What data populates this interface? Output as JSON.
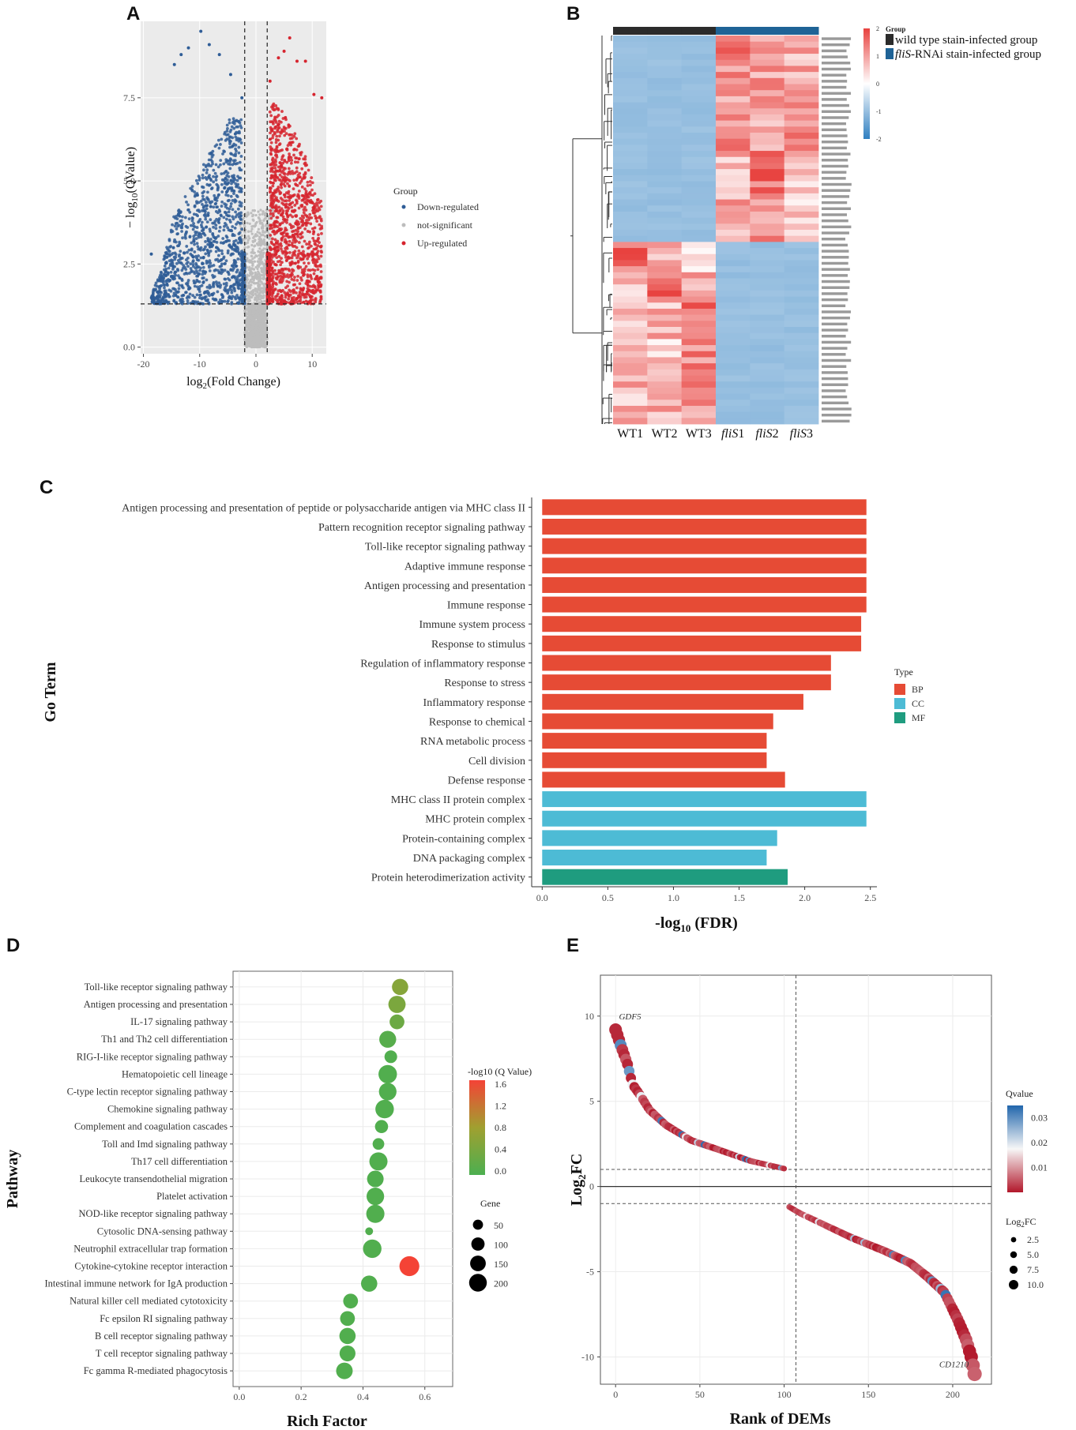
{
  "panels": {
    "a": "A",
    "b": "B",
    "c": "C",
    "d": "D",
    "e": "E"
  },
  "chart_data": [
    {
      "id": "A",
      "type": "scatter",
      "title": "",
      "xlabel": "log2(Fold Change)",
      "xlabel_main": "log",
      "xlabel_sub": "2",
      "xlabel_tail": "(Fold Change)",
      "ylabel": "−log10(QValue)",
      "ylabel_main": "− log",
      "ylabel_sub": "10",
      "ylabel_tail": "(QValue)",
      "xlim": [
        -20.5,
        12.5
      ],
      "ylim": [
        -0.2,
        9.8
      ],
      "xticks": [
        "-20",
        "-10",
        "0",
        "10"
      ],
      "xtick_values": [
        -20,
        -10,
        0,
        10
      ],
      "yticks": [
        "0.0",
        "2.5",
        "5.0",
        "7.5"
      ],
      "ytick_values": [
        0,
        2.5,
        5,
        7.5
      ],
      "thresholds": {
        "x": [
          -2,
          2
        ],
        "y": 1.3
      },
      "legend_title": "Group",
      "legend": [
        {
          "label": "Down-regulated",
          "color": "#2f5d97"
        },
        {
          "label": "not-significant",
          "color": "#bdbdbd"
        },
        {
          "label": "Up-regulated",
          "color": "#d6242e"
        }
      ],
      "envelope": {
        "down": [
          [
            -18.6,
            2.8
          ],
          [
            -14.5,
            8.5
          ],
          [
            -13.3,
            8.8
          ],
          [
            -12,
            9.0
          ],
          [
            -9.8,
            9.5
          ],
          [
            -8.3,
            9.1
          ],
          [
            -6.5,
            8.8
          ],
          [
            -4.5,
            8.2
          ],
          [
            -2.5,
            7.5
          ]
        ],
        "up": [
          [
            2.5,
            8.0
          ],
          [
            4.0,
            8.7
          ],
          [
            5.0,
            8.9
          ],
          [
            6.0,
            9.3
          ],
          [
            7.3,
            8.6
          ],
          [
            8.8,
            8.6
          ],
          [
            10.3,
            7.6
          ],
          [
            11.7,
            7.5
          ]
        ]
      }
    },
    {
      "id": "B",
      "type": "heatmap",
      "columns": [
        "WT1",
        "WT2",
        "WT3",
        "fliS1",
        "fliS2",
        "fliS3"
      ],
      "column_labels": [
        {
          "prefix": "WT1",
          "italic": "",
          "suffix": ""
        },
        {
          "prefix": "WT2",
          "italic": "",
          "suffix": ""
        },
        {
          "prefix": "WT3",
          "italic": "",
          "suffix": ""
        },
        {
          "prefix": "",
          "italic": "fliS",
          "suffix": "1"
        },
        {
          "prefix": "",
          "italic": "fliS",
          "suffix": "2"
        },
        {
          "prefix": "",
          "italic": "fliS",
          "suffix": "3"
        }
      ],
      "group_annotation": [
        "wild type",
        "wild type",
        "wild type",
        "fliS",
        "fliS",
        "fliS"
      ],
      "group_legend_title": "Group",
      "group_legend": [
        {
          "label": "wild type stain-infected group",
          "italic": "",
          "color": "#2b2b2b"
        },
        {
          "label": "-RNAi stain-infected group",
          "italic": "fliS",
          "color": "#1f6396"
        }
      ],
      "color_scale": {
        "min": -2,
        "max": 2,
        "low": "#2f7fc1",
        "mid": "#ffffff",
        "high": "#e8423f"
      },
      "scale_ticks": [
        "2",
        "1",
        "0",
        "-1",
        "-2"
      ],
      "scale_tick_values": [
        2,
        1,
        0,
        -1,
        -2
      ],
      "row_blocks": [
        {
          "rows": 10,
          "values": [
            -1,
            -1,
            -1,
            1.3,
            1.0,
            0.9
          ]
        },
        {
          "rows": 9,
          "values": [
            -1,
            -1,
            -1,
            1.1,
            0.9,
            1.2
          ]
        },
        {
          "rows": 7,
          "values": [
            -1,
            -1,
            -1,
            0.7,
            1.5,
            0.6
          ]
        },
        {
          "rows": 8,
          "values": [
            -1,
            -1,
            -1,
            0.9,
            1.1,
            0.6
          ]
        },
        {
          "rows": 5,
          "values": [
            1.5,
            0.7,
            0.6,
            -1,
            -1,
            -1
          ]
        },
        {
          "rows": 5,
          "values": [
            0.6,
            1.5,
            0.8,
            -1,
            -1,
            -1
          ]
        },
        {
          "rows": 6,
          "values": [
            0.6,
            0.8,
            1.5,
            -1,
            -1,
            -1
          ]
        },
        {
          "rows": 8,
          "values": [
            0.8,
            0.5,
            1.3,
            -1,
            -1,
            -1
          ]
        },
        {
          "rows": 6,
          "values": [
            0.7,
            0.9,
            1.1,
            -1,
            -1,
            -1
          ]
        }
      ],
      "row_ids": "gene identifiers (illegibly small)"
    },
    {
      "id": "C",
      "type": "bar",
      "orientation": "horizontal",
      "xlabel": "-log10 (FDR)",
      "xlabel_main": "-log",
      "xlabel_sub": "10",
      "xlabel_tail": " (FDR)",
      "ylabel": "Go Term",
      "xlim": [
        -0.08,
        2.55
      ],
      "xticks": [
        "0.0",
        "0.5",
        "1.0",
        "1.5",
        "2.0",
        "2.5"
      ],
      "xtick_values": [
        0,
        0.5,
        1.0,
        1.5,
        2.0,
        2.5
      ],
      "legend_title": "Type",
      "legend": [
        {
          "label": "BP",
          "color": "#e64b35"
        },
        {
          "label": "CC",
          "color": "#4dbbd5"
        },
        {
          "label": "MF",
          "color": "#1f9c7f"
        }
      ],
      "categories": [
        "Antigen processing and presentation of peptide or polysaccharide antigen via MHC class II",
        "Pattern recognition receptor signaling pathway",
        "Toll-like receptor signaling pathway",
        "Adaptive immune response",
        "Antigen processing and presentation",
        "Immune response",
        "Immune system process",
        "Response to stimulus",
        "Regulation of inflammatory response",
        "Response to stress",
        "Inflammatory response",
        "Response to chemical",
        "RNA metabolic process",
        "Cell division",
        "Defense response",
        "MHC class II protein complex",
        "MHC protein complex",
        "Protein-containing complex",
        "DNA packaging complex",
        "Protein heterodimerization activity"
      ],
      "values": [
        2.47,
        2.47,
        2.47,
        2.47,
        2.47,
        2.47,
        2.43,
        2.43,
        2.2,
        2.2,
        1.99,
        1.76,
        1.71,
        1.71,
        1.85,
        2.47,
        2.47,
        1.79,
        1.71,
        1.87
      ],
      "types": [
        "BP",
        "BP",
        "BP",
        "BP",
        "BP",
        "BP",
        "BP",
        "BP",
        "BP",
        "BP",
        "BP",
        "BP",
        "BP",
        "BP",
        "BP",
        "CC",
        "CC",
        "CC",
        "CC",
        "MF"
      ]
    },
    {
      "id": "D",
      "type": "scatter",
      "subtype": "bubble",
      "xlabel": "Rich Factor",
      "ylabel": "Pathway",
      "xlim": [
        -0.02,
        0.69
      ],
      "xticks": [
        "0.0",
        "0.2",
        "0.4",
        "0.6"
      ],
      "xtick_values": [
        0,
        0.2,
        0.4,
        0.6
      ],
      "color_legend_title": "-log10 (Q Value)",
      "color_scale": {
        "min": 0,
        "max": 1.6,
        "low": "#4caf50",
        "high": "#f44336"
      },
      "color_ticks": [
        "1.6",
        "1.2",
        "0.8",
        "0.4",
        "0.0"
      ],
      "color_tick_values": [
        1.6,
        1.2,
        0.8,
        0.4,
        0.0
      ],
      "size_legend_title": "Gene",
      "size_legend": [
        "50",
        "100",
        "150",
        "200"
      ],
      "size_legend_values": [
        50,
        100,
        150,
        200
      ],
      "categories": [
        "Toll-like receptor signaling pathway",
        "Antigen processing and presentation",
        "IL-17 signaling pathway",
        "Th1 and Th2 cell differentiation",
        "RIG-I-like receptor signaling pathway",
        "Hematopoietic cell lineage",
        "C-type lectin receptor signaling pathway",
        "Chemokine signaling pathway",
        "Complement and coagulation cascades",
        "Toll and Imd signaling pathway",
        "Th17 cell differentiation",
        "Leukocyte transendothelial migration",
        "Platelet activation",
        "NOD-like receptor signaling pathway",
        "Cytosolic DNA-sensing pathway",
        "Neutrophil extracellular trap formation",
        "Cytokine-cytokine receptor interaction",
        "Intestinal immune network for IgA production",
        "Natural killer cell mediated cytotoxicity",
        "Fc epsilon RI signaling pathway",
        "B cell receptor signaling pathway",
        "T cell receptor signaling pathway",
        "Fc gamma R-mediated phagocytosis"
      ],
      "rich_factor": [
        0.52,
        0.51,
        0.51,
        0.48,
        0.49,
        0.48,
        0.48,
        0.47,
        0.46,
        0.45,
        0.45,
        0.44,
        0.44,
        0.44,
        0.42,
        0.43,
        0.55,
        0.42,
        0.36,
        0.35,
        0.35,
        0.35,
        0.34
      ],
      "neg_log10_q": [
        0.55,
        0.45,
        0.3,
        0.1,
        0.05,
        0.05,
        0.05,
        0.05,
        0.05,
        0.05,
        0.05,
        0.05,
        0.05,
        0.05,
        0.05,
        0.05,
        1.6,
        0.05,
        0.05,
        0.05,
        0.05,
        0.05,
        0.05
      ],
      "gene_count": [
        95,
        110,
        75,
        105,
        50,
        130,
        115,
        130,
        55,
        40,
        125,
        100,
        115,
        125,
        12,
        130,
        155,
        95,
        75,
        75,
        95,
        90,
        100
      ]
    },
    {
      "id": "E",
      "type": "scatter",
      "xlabel": "Rank of DEMs",
      "ylabel": "Log2FC",
      "ylabel_main": "Log",
      "ylabel_sub": "2",
      "ylabel_tail": "FC",
      "xlim": [
        -9,
        223
      ],
      "ylim": [
        -11.6,
        12.4
      ],
      "xticks": [
        "0",
        "50",
        "100",
        "150",
        "200"
      ],
      "xtick_values": [
        0,
        50,
        100,
        150,
        200
      ],
      "yticks": [
        "10",
        "5",
        "0",
        "-5",
        "-10"
      ],
      "ytick_values": [
        10,
        5,
        0,
        -5,
        -10
      ],
      "thresholds": {
        "x": 107,
        "y": [
          1,
          -1
        ]
      },
      "annotations": [
        "GDF5",
        "CD1210"
      ],
      "qvalue_legend_title": "Qvalue",
      "qvalue_scale": {
        "min": 0.0,
        "max": 0.035,
        "low": "#b2182b",
        "mid": "#f7f7f7",
        "high": "#2166ac"
      },
      "qvalue_ticks": [
        "0.03",
        "0.02",
        "0.01"
      ],
      "qvalue_tick_values": [
        0.03,
        0.02,
        0.01
      ],
      "size_legend_title": "Log2FC",
      "size_legend_title_main": "Log",
      "size_legend_title_sub": "2",
      "size_legend_title_tail": "FC",
      "size_legend": [
        "2.5",
        "5.0",
        "7.5",
        "10.0"
      ],
      "size_legend_values": [
        2.5,
        5.0,
        7.5,
        10.0
      ],
      "up_curve": [
        [
          0,
          9.2
        ],
        [
          3,
          8.3
        ],
        [
          7,
          7.2
        ],
        [
          10,
          6.0
        ],
        [
          15,
          5.3
        ],
        [
          20,
          4.5
        ],
        [
          30,
          3.6
        ],
        [
          45,
          2.7
        ],
        [
          60,
          2.2
        ],
        [
          80,
          1.5
        ],
        [
          100,
          1.05
        ]
      ],
      "down_curve": [
        [
          103,
          -1.2
        ],
        [
          110,
          -1.6
        ],
        [
          125,
          -2.3
        ],
        [
          140,
          -3.0
        ],
        [
          160,
          -3.8
        ],
        [
          175,
          -4.5
        ],
        [
          185,
          -5.3
        ],
        [
          195,
          -6.2
        ],
        [
          203,
          -7.8
        ],
        [
          208,
          -9.0
        ],
        [
          211,
          -10.0
        ],
        [
          213,
          -11.0
        ]
      ]
    }
  ]
}
